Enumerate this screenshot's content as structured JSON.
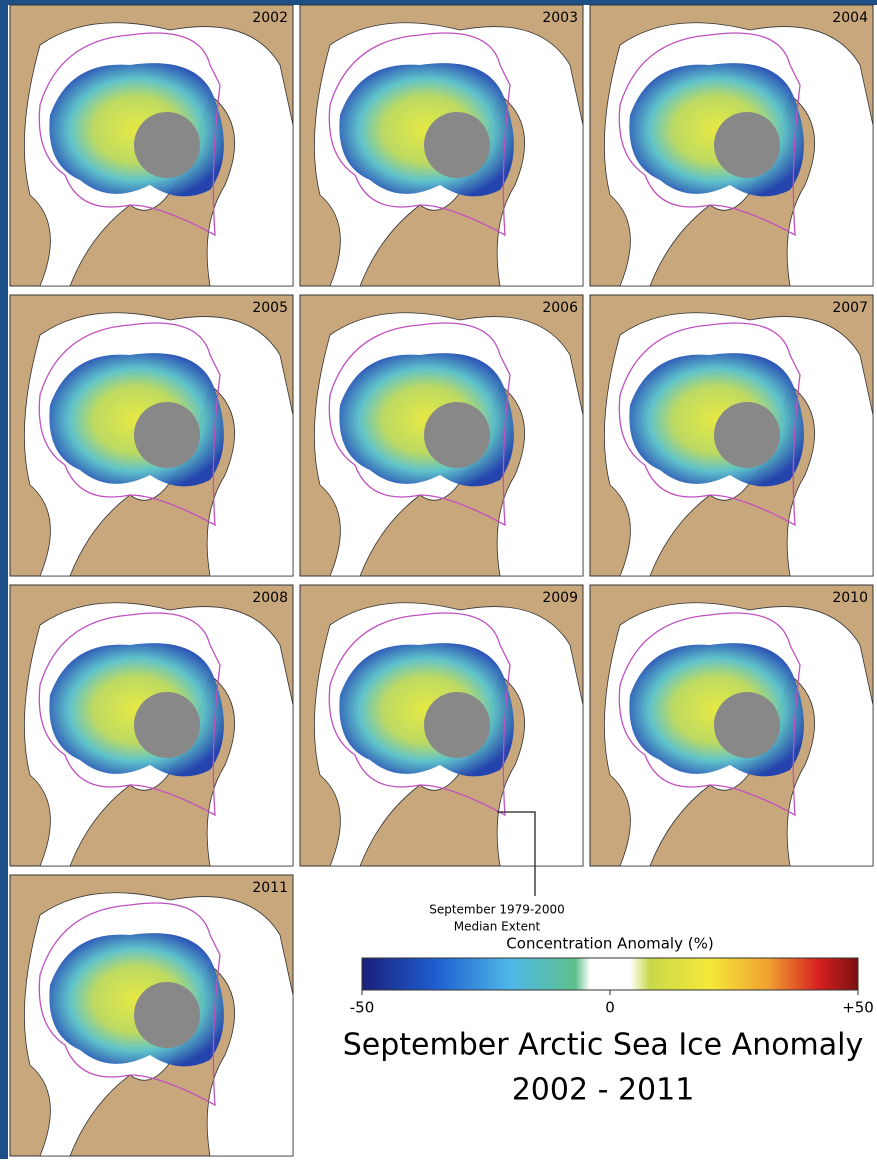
{
  "panels": [
    "2002",
    "2003",
    "2004",
    "2005",
    "2006",
    "2007",
    "2008",
    "2009",
    "2010",
    "2011"
  ],
  "annotation": {
    "line1": "September 1979-2000",
    "line2": "Median Extent"
  },
  "colorbar": {
    "title": "Concentration Anomaly (%)",
    "range": [
      -50,
      50
    ],
    "ticks": [
      {
        "value": -50,
        "label": "-50"
      },
      {
        "value": 0,
        "label": "0"
      },
      {
        "value": 50,
        "label": "+50"
      }
    ]
  },
  "title": {
    "line1": "September Arctic Sea Ice Anomaly",
    "line2": "2002 - 2011"
  }
}
